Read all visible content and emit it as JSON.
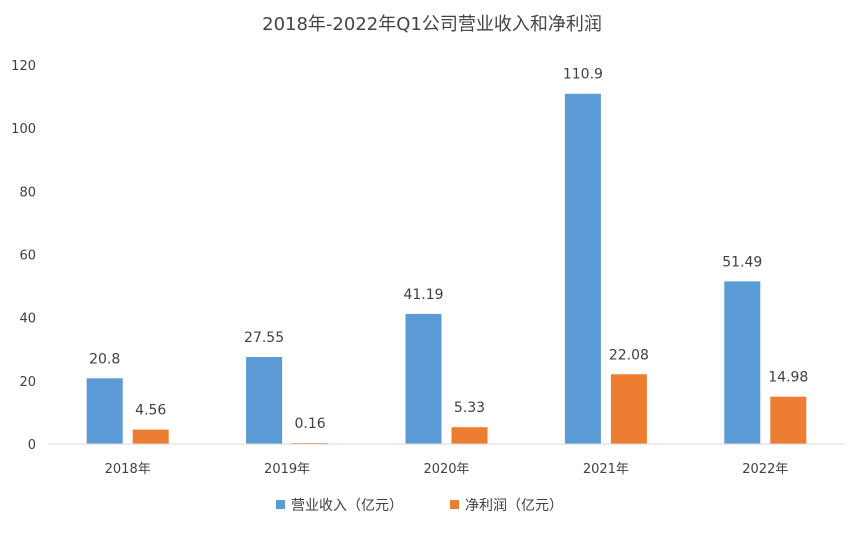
{
  "chart_data": {
    "type": "bar",
    "title": "2018年-2022年Q1公司营业收入和净利润",
    "categories": [
      "2018年",
      "2019年",
      "2020年",
      "2021年",
      "2022年"
    ],
    "series": [
      {
        "name": "营业收入（亿元）",
        "values": [
          20.8,
          27.55,
          41.19,
          110.9,
          51.49
        ],
        "labels": [
          "20.8",
          "27.55",
          "41.19",
          "110.9",
          "51.49"
        ],
        "color": "#5B9BD5"
      },
      {
        "name": "净利润（亿元）",
        "values": [
          4.56,
          0.16,
          5.33,
          22.08,
          14.98
        ],
        "labels": [
          "4.56",
          "0.16",
          "5.33",
          "22.08",
          "14.98"
        ],
        "color": "#ED7D31"
      }
    ],
    "ylim": [
      0,
      120
    ],
    "yticks": [
      0,
      20,
      40,
      60,
      80,
      100,
      120
    ],
    "xlabel": "",
    "ylabel": "",
    "grid": false,
    "legend": "bottom-center"
  }
}
